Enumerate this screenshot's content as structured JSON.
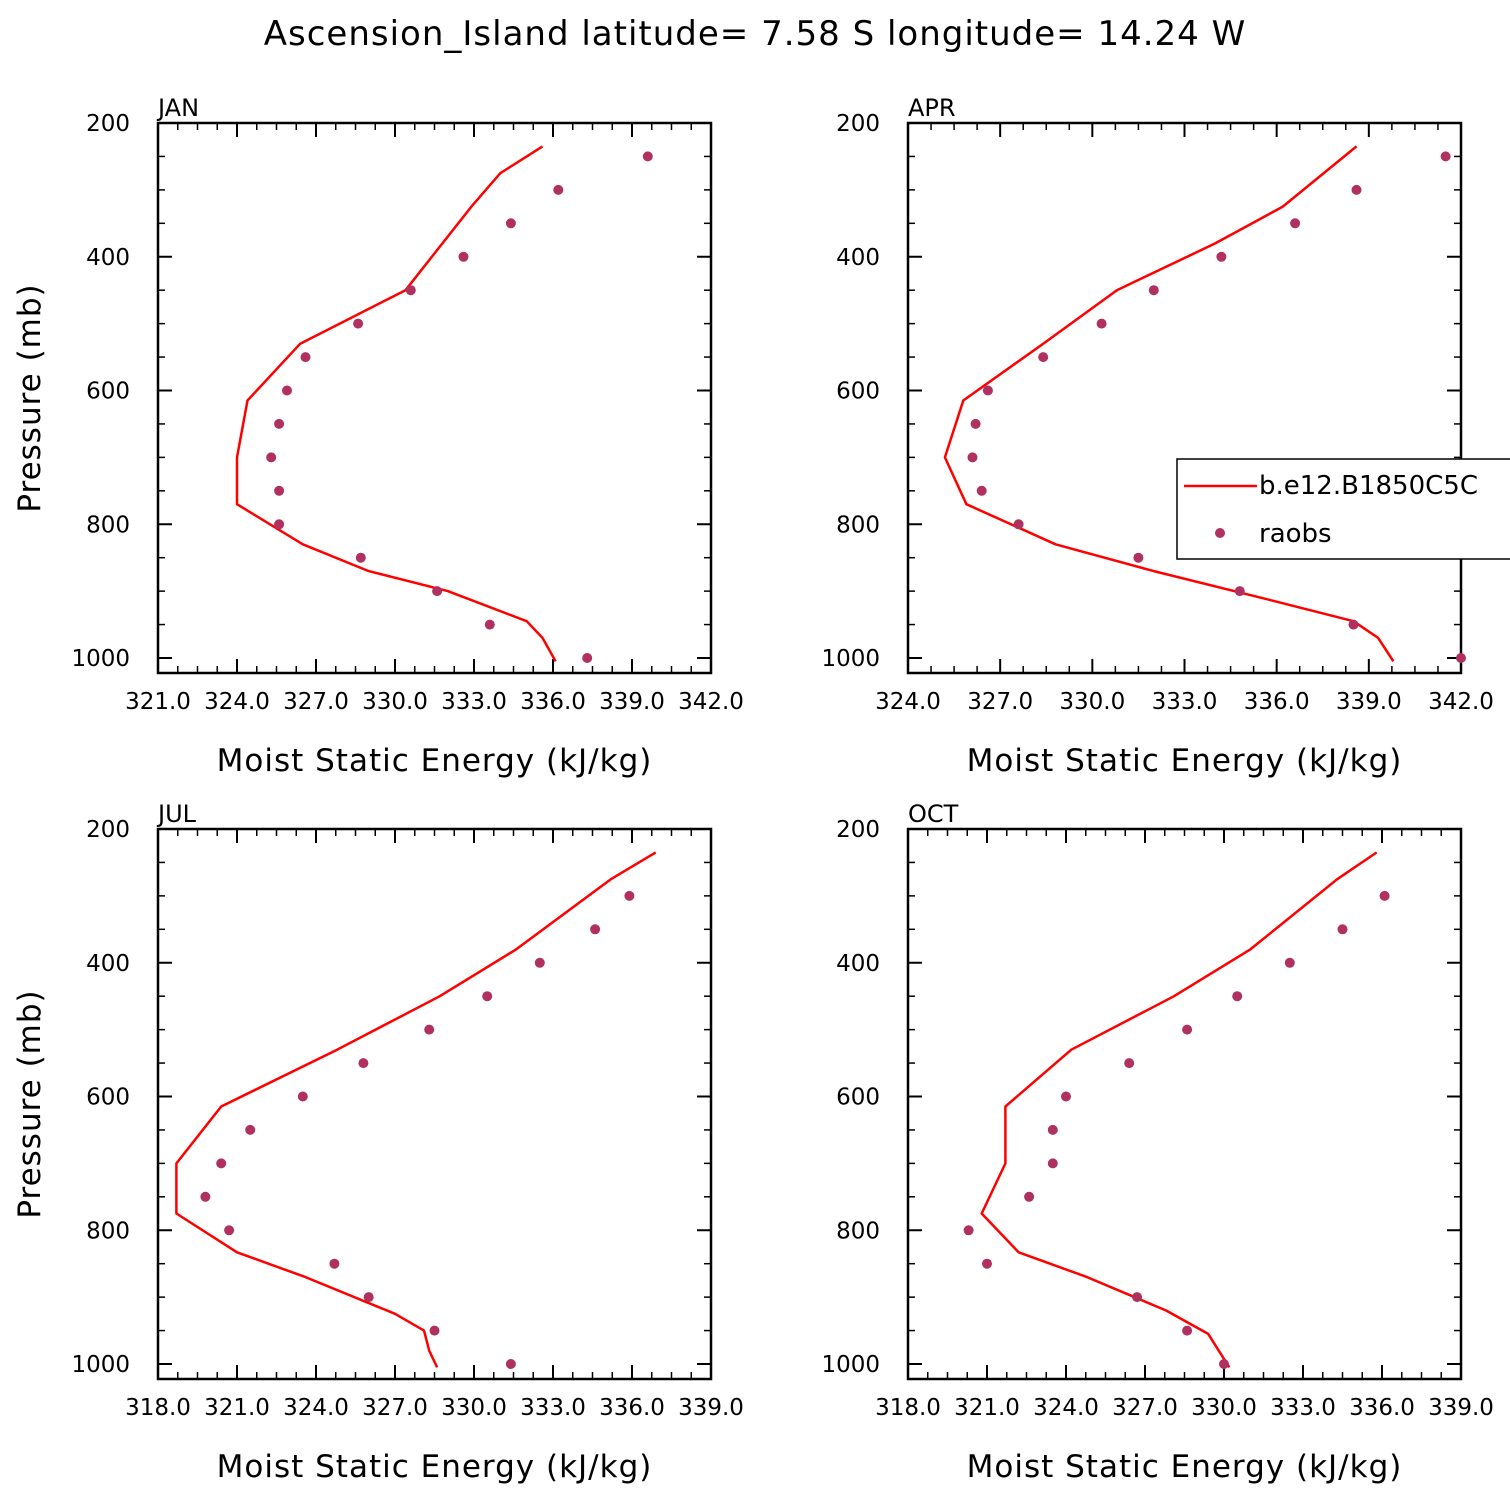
{
  "figure": {
    "title": "Ascension_Island  latitude= 7.58 S longitude= 14.24 W"
  },
  "legend": {
    "items": [
      {
        "label": "b.e12.B1850C5C",
        "kind": "line",
        "color": "#ff0000"
      },
      {
        "label": "raobs",
        "kind": "marker",
        "color": "#b03060"
      }
    ]
  },
  "chart_data": [
    {
      "type": "line",
      "panel": "JAN",
      "xlabel": "Moist Static Energy (kJ/kg)",
      "ylabel": "Pressure (mb)",
      "xlim": [
        321.0,
        342.0
      ],
      "ylim": [
        200,
        1000
      ],
      "y_inverted": true,
      "xtick_labels": [
        "321.0",
        "324.0",
        "327.0",
        "330.0",
        "333.0",
        "336.0",
        "339.0",
        "342.0"
      ],
      "ytick_labels": [
        "200",
        "400",
        "600",
        "800",
        "1000"
      ],
      "series": [
        {
          "name": "b.e12.B1850C5C",
          "style": "line",
          "color": "#ff0000",
          "points": [
            [
              335.6,
              235
            ],
            [
              334.0,
              275
            ],
            [
              332.9,
              325
            ],
            [
              330.4,
              450
            ],
            [
              326.4,
              530
            ],
            [
              324.4,
              615
            ],
            [
              324.0,
              700
            ],
            [
              324.0,
              770
            ],
            [
              326.5,
              830
            ],
            [
              329.0,
              870
            ],
            [
              332.0,
              900
            ],
            [
              335.0,
              945
            ],
            [
              335.6,
              970
            ],
            [
              336.1,
              1005
            ]
          ]
        },
        {
          "name": "raobs",
          "style": "scatter",
          "color": "#b03060",
          "points": [
            [
              339.6,
              250
            ],
            [
              336.2,
              300
            ],
            [
              334.4,
              350
            ],
            [
              332.6,
              400
            ],
            [
              330.6,
              450
            ],
            [
              328.6,
              500
            ],
            [
              326.6,
              550
            ],
            [
              325.9,
              600
            ],
            [
              325.6,
              650
            ],
            [
              325.3,
              700
            ],
            [
              325.6,
              750
            ],
            [
              325.6,
              800
            ],
            [
              328.7,
              850
            ],
            [
              331.6,
              900
            ],
            [
              333.6,
              950
            ],
            [
              337.3,
              1000
            ]
          ]
        }
      ]
    },
    {
      "type": "line",
      "panel": "APR",
      "xlabel": "Moist Static Energy (kJ/kg)",
      "ylabel": "",
      "xlim": [
        324.0,
        342.0
      ],
      "ylim": [
        200,
        1000
      ],
      "y_inverted": true,
      "xtick_labels": [
        "324.0",
        "327.0",
        "330.0",
        "333.0",
        "336.0",
        "339.0",
        "342.0"
      ],
      "ytick_labels": [
        "200",
        "400",
        "600",
        "800",
        "1000"
      ],
      "series": [
        {
          "name": "b.e12.B1850C5C",
          "style": "line",
          "color": "#ff0000",
          "points": [
            [
              338.6,
              235
            ],
            [
              336.2,
              325
            ],
            [
              334.0,
              380
            ],
            [
              330.8,
              450
            ],
            [
              328.4,
              530
            ],
            [
              325.8,
              615
            ],
            [
              325.2,
              700
            ],
            [
              325.9,
              770
            ],
            [
              328.8,
              830
            ],
            [
              332.0,
              870
            ],
            [
              335.5,
              910
            ],
            [
              338.5,
              945
            ],
            [
              339.3,
              970
            ],
            [
              339.8,
              1005
            ]
          ]
        },
        {
          "name": "raobs",
          "style": "scatter",
          "color": "#b03060",
          "points": [
            [
              341.5,
              250
            ],
            [
              338.6,
              300
            ],
            [
              336.6,
              350
            ],
            [
              334.2,
              400
            ],
            [
              332.0,
              450
            ],
            [
              330.3,
              500
            ],
            [
              328.4,
              550
            ],
            [
              326.6,
              600
            ],
            [
              326.2,
              650
            ],
            [
              326.1,
              700
            ],
            [
              326.4,
              750
            ],
            [
              327.6,
              800
            ],
            [
              331.5,
              850
            ],
            [
              334.8,
              900
            ],
            [
              338.5,
              950
            ],
            [
              342.0,
              1000
            ]
          ]
        }
      ]
    },
    {
      "type": "line",
      "panel": "JUL",
      "xlabel": "Moist Static Energy (kJ/kg)",
      "ylabel": "Pressure (mb)",
      "xlim": [
        318.0,
        339.0
      ],
      "ylim": [
        200,
        1000
      ],
      "y_inverted": true,
      "xtick_labels": [
        "318.0",
        "321.0",
        "324.0",
        "327.0",
        "330.0",
        "333.0",
        "336.0",
        "339.0"
      ],
      "ytick_labels": [
        "200",
        "400",
        "600",
        "800",
        "1000"
      ],
      "series": [
        {
          "name": "b.e12.B1850C5C",
          "style": "line",
          "color": "#ff0000",
          "points": [
            [
              336.9,
              235
            ],
            [
              335.2,
              275
            ],
            [
              331.6,
              380
            ],
            [
              328.7,
              450
            ],
            [
              324.8,
              530
            ],
            [
              320.4,
              615
            ],
            [
              318.7,
              700
            ],
            [
              318.7,
              775
            ],
            [
              321.0,
              833
            ],
            [
              323.6,
              870
            ],
            [
              327.0,
              925
            ],
            [
              328.1,
              950
            ],
            [
              328.3,
              980
            ],
            [
              328.6,
              1005
            ]
          ]
        },
        {
          "name": "raobs",
          "style": "scatter",
          "color": "#b03060",
          "points": [
            [
              335.9,
              300
            ],
            [
              334.6,
              350
            ],
            [
              332.5,
              400
            ],
            [
              330.5,
              450
            ],
            [
              328.3,
              500
            ],
            [
              325.8,
              550
            ],
            [
              323.5,
              600
            ],
            [
              321.5,
              650
            ],
            [
              320.4,
              700
            ],
            [
              319.8,
              750
            ],
            [
              320.7,
              800
            ],
            [
              324.7,
              850
            ],
            [
              326.0,
              900
            ],
            [
              328.5,
              950
            ],
            [
              331.4,
              1000
            ]
          ]
        }
      ]
    },
    {
      "type": "line",
      "panel": "OCT",
      "xlabel": "Moist Static Energy (kJ/kg)",
      "ylabel": "",
      "xlim": [
        318.0,
        339.0
      ],
      "ylim": [
        200,
        1000
      ],
      "y_inverted": true,
      "xtick_labels": [
        "318.0",
        "321.0",
        "324.0",
        "327.0",
        "330.0",
        "333.0",
        "336.0",
        "339.0"
      ],
      "ytick_labels": [
        "200",
        "400",
        "600",
        "800",
        "1000"
      ],
      "series": [
        {
          "name": "b.e12.B1850C5C",
          "style": "line",
          "color": "#ff0000",
          "points": [
            [
              335.8,
              235
            ],
            [
              334.3,
              275
            ],
            [
              331.0,
              380
            ],
            [
              328.1,
              450
            ],
            [
              324.2,
              530
            ],
            [
              321.7,
              615
            ],
            [
              321.7,
              700
            ],
            [
              320.8,
              775
            ],
            [
              322.2,
              833
            ],
            [
              324.8,
              870
            ],
            [
              327.8,
              920
            ],
            [
              329.4,
              955
            ],
            [
              329.8,
              980
            ],
            [
              330.2,
              1005
            ]
          ]
        },
        {
          "name": "raobs",
          "style": "scatter",
          "color": "#b03060",
          "points": [
            [
              336.1,
              300
            ],
            [
              334.5,
              350
            ],
            [
              332.5,
              400
            ],
            [
              330.5,
              450
            ],
            [
              328.6,
              500
            ],
            [
              326.4,
              550
            ],
            [
              324.0,
              600
            ],
            [
              323.5,
              650
            ],
            [
              323.5,
              700
            ],
            [
              322.6,
              750
            ],
            [
              320.3,
              800
            ],
            [
              321.0,
              850
            ],
            [
              326.7,
              900
            ],
            [
              328.6,
              950
            ],
            [
              330.0,
              1000
            ]
          ]
        }
      ]
    }
  ]
}
